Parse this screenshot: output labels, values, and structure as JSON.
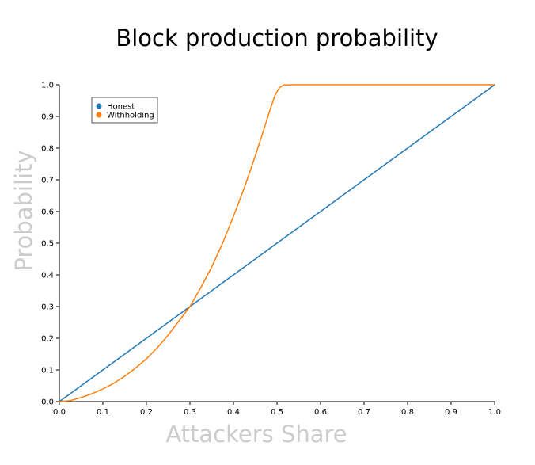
{
  "chart_data": {
    "type": "line",
    "title": "Block production probability",
    "xlabel": "Attackers Share",
    "ylabel": "Probability",
    "xlim": [
      0.0,
      1.0
    ],
    "ylim": [
      0.0,
      1.0
    ],
    "xticks": [
      "0.0",
      "0.1",
      "0.2",
      "0.3",
      "0.4",
      "0.5",
      "0.6",
      "0.7",
      "0.8",
      "0.9",
      "1.0"
    ],
    "yticks": [
      "0.0",
      "0.1",
      "0.2",
      "0.3",
      "0.4",
      "0.5",
      "0.6",
      "0.7",
      "0.8",
      "0.9",
      "1.0"
    ],
    "grid": false,
    "legend_position": "top-left",
    "series": [
      {
        "name": "Honest",
        "color": "#1f77b4",
        "x": [
          0.0,
          1.0
        ],
        "y": [
          0.0,
          1.0
        ]
      },
      {
        "name": "Withholding",
        "color": "#ff7f0e",
        "x": [
          0.0,
          0.025,
          0.05,
          0.075,
          0.1,
          0.125,
          0.15,
          0.175,
          0.2,
          0.225,
          0.25,
          0.275,
          0.3,
          0.325,
          0.35,
          0.375,
          0.4,
          0.425,
          0.45,
          0.47,
          0.485,
          0.495,
          0.505,
          0.515,
          0.53,
          0.6,
          0.7,
          0.8,
          0.9,
          1.0
        ],
        "y": [
          0.0,
          0.003,
          0.013,
          0.025,
          0.04,
          0.058,
          0.08,
          0.106,
          0.135,
          0.17,
          0.21,
          0.255,
          0.3,
          0.36,
          0.425,
          0.5,
          0.585,
          0.675,
          0.775,
          0.86,
          0.925,
          0.965,
          0.99,
          0.999,
          1.0,
          1.0,
          1.0,
          1.0,
          1.0,
          1.0
        ]
      }
    ]
  }
}
